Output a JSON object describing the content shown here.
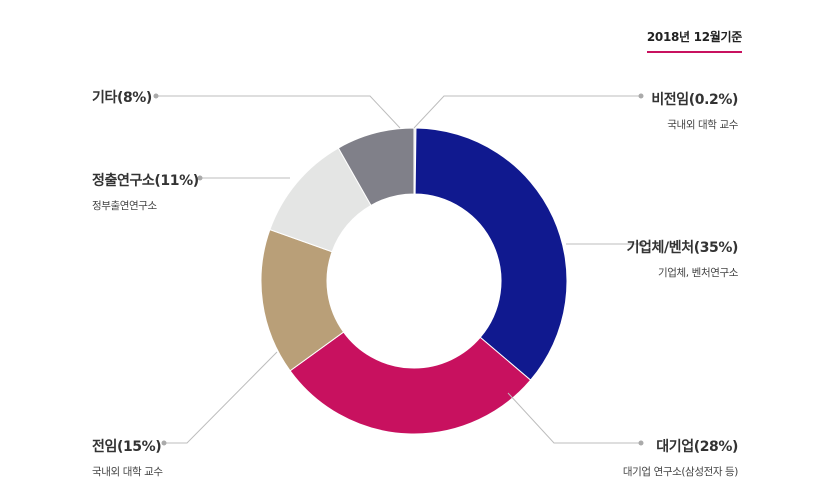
{
  "basis_note": "2018년 12월기준",
  "colors": {
    "business": "#10198f",
    "large_corp": "#c8115f",
    "univ": "#b99f78",
    "govt": "#e4e5e4",
    "other": "#808089",
    "nonfaculty": "#e4e5e4",
    "leader": "#bdbdbd"
  },
  "chart_data": {
    "type": "pie",
    "donut": true,
    "title": "",
    "slices": [
      {
        "label": "비전임(0.2%)",
        "sublabel": "국내외 대학 교수",
        "value": 0.2
      },
      {
        "label": "기업체/벤처(35%)",
        "sublabel": "기업체, 벤처연구소",
        "value": 35
      },
      {
        "label": "대기업(28%)",
        "sublabel": "대기업 연구소(삼성전자 등)",
        "value": 28
      },
      {
        "label": "전임(15%)",
        "sublabel": "국내외 대학 교수",
        "value": 15
      },
      {
        "label": "정출연구소(11%)",
        "sublabel": "정부출연연구소",
        "value": 11
      },
      {
        "label": "기타(8%)",
        "sublabel": "",
        "value": 8
      }
    ]
  }
}
